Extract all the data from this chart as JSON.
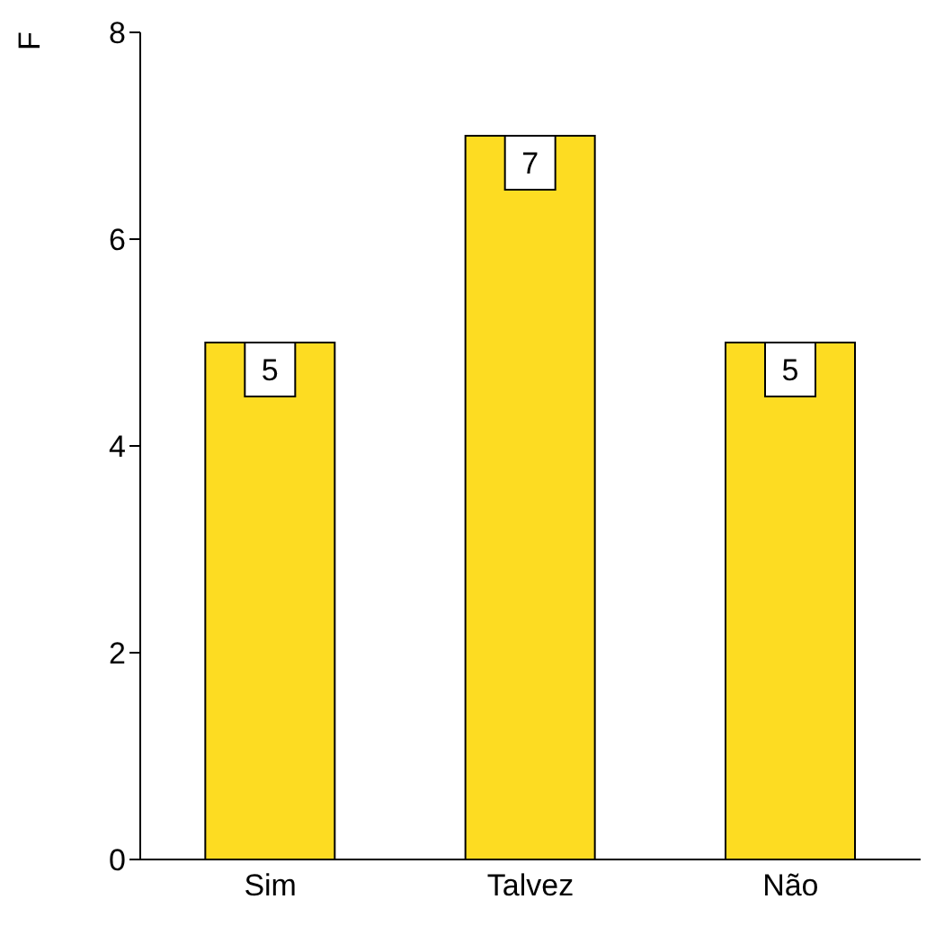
{
  "chart_data": {
    "type": "bar",
    "ylabel": "F",
    "categories": [
      "Sim",
      "Talvez",
      "Não"
    ],
    "values": [
      5,
      7,
      5
    ],
    "color": "#fddc22",
    "ylim": [
      0,
      8
    ],
    "yticks": [
      0,
      2,
      4,
      6,
      8
    ],
    "grid": false,
    "data_labels": true
  }
}
